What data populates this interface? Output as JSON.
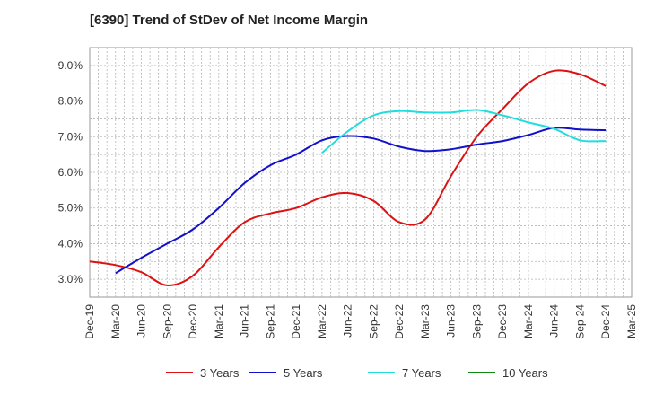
{
  "chart_data": {
    "type": "line",
    "title": "[6390]  Trend of StDev of Net Income Margin",
    "xlabel": "",
    "ylabel": "",
    "categories": [
      "Dec-19",
      "Mar-20",
      "Jun-20",
      "Sep-20",
      "Dec-20",
      "Mar-21",
      "Jun-21",
      "Sep-21",
      "Dec-21",
      "Mar-22",
      "Jun-22",
      "Sep-22",
      "Dec-22",
      "Mar-23",
      "Jun-23",
      "Sep-23",
      "Dec-23",
      "Mar-24",
      "Jun-24",
      "Sep-24",
      "Dec-24",
      "Mar-25"
    ],
    "ylim": [
      2.5,
      9.5
    ],
    "yticks": [
      "3.0%",
      "4.0%",
      "5.0%",
      "6.0%",
      "7.0%",
      "8.0%",
      "9.0%"
    ],
    "ytick_values": [
      3.0,
      4.0,
      5.0,
      6.0,
      7.0,
      8.0,
      9.0
    ],
    "grid": true,
    "legend_position": "bottom",
    "series": [
      {
        "name": "3 Years",
        "color": "#dd1111",
        "values": [
          3.5,
          3.4,
          3.2,
          2.83,
          3.1,
          3.9,
          4.6,
          4.85,
          5.0,
          5.3,
          5.42,
          5.2,
          4.6,
          4.68,
          5.9,
          7.0,
          7.78,
          8.5,
          8.85,
          8.75,
          8.42,
          null
        ]
      },
      {
        "name": "5 Years",
        "color": "#1111cc",
        "values": [
          null,
          3.17,
          3.6,
          4.0,
          4.4,
          5.0,
          5.7,
          6.2,
          6.5,
          6.9,
          7.02,
          6.95,
          6.72,
          6.6,
          6.65,
          6.78,
          6.88,
          7.05,
          7.25,
          7.2,
          7.18,
          null
        ]
      },
      {
        "name": "7 Years",
        "color": "#22dddd",
        "values": [
          null,
          null,
          null,
          null,
          null,
          null,
          null,
          null,
          null,
          6.55,
          7.15,
          7.6,
          7.72,
          7.68,
          7.68,
          7.75,
          7.6,
          7.4,
          7.22,
          6.9,
          6.88,
          null
        ]
      },
      {
        "name": "10 Years",
        "color": "#118811",
        "values": [
          null,
          null,
          null,
          null,
          null,
          null,
          null,
          null,
          null,
          null,
          null,
          null,
          null,
          null,
          null,
          null,
          null,
          null,
          null,
          null,
          null,
          null
        ]
      }
    ]
  }
}
